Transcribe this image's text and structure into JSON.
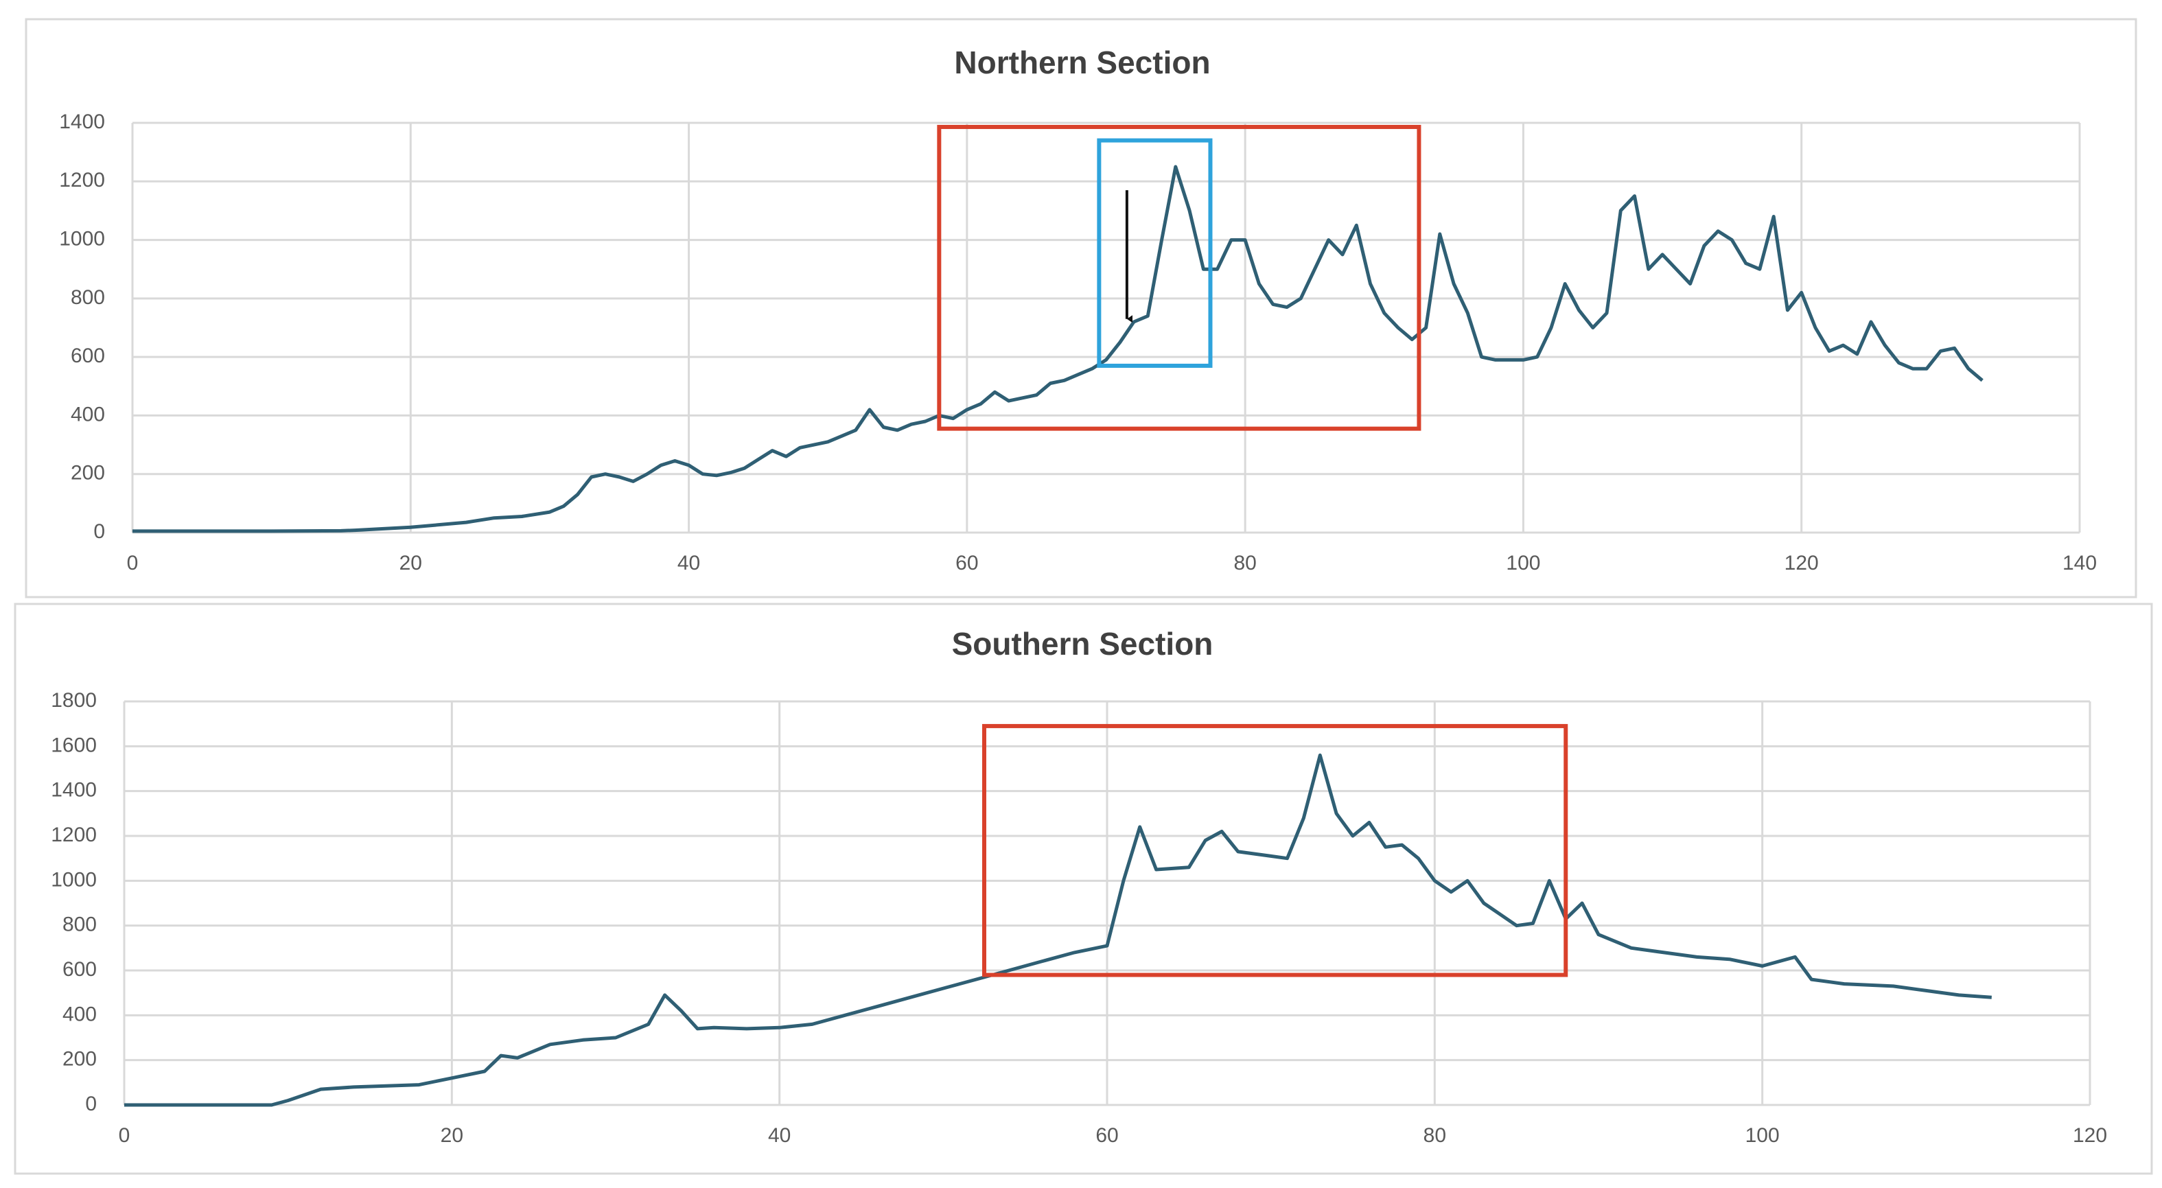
{
  "chart_data": [
    {
      "type": "line",
      "title": "Northern Section",
      "x": [
        0,
        5,
        10,
        15,
        16,
        20,
        24,
        26,
        28,
        30,
        31,
        32,
        33,
        34,
        35,
        36,
        37,
        38,
        39,
        40,
        41,
        42,
        43,
        44,
        45,
        46,
        47,
        48,
        49,
        50,
        51,
        52,
        53,
        54,
        55,
        56,
        57,
        58,
        59,
        60,
        61,
        62,
        63,
        64,
        65,
        66,
        67,
        68,
        69,
        70,
        71,
        72,
        73,
        74,
        75,
        76,
        77,
        78,
        79,
        80,
        81,
        82,
        83,
        84,
        85,
        86,
        87,
        88,
        89,
        90,
        91,
        92,
        93,
        94,
        95,
        96,
        97,
        98,
        99,
        100,
        101,
        102,
        103,
        104,
        105,
        106,
        107,
        108,
        109,
        110,
        111,
        112,
        113,
        114,
        115,
        116,
        117,
        118,
        119,
        120,
        121,
        122,
        123,
        124,
        125,
        126,
        127,
        128,
        129,
        130,
        131,
        132,
        133
      ],
      "series": [
        {
          "color": "#2f5f74",
          "values": [
            5,
            5,
            5,
            6,
            8,
            18,
            35,
            50,
            55,
            70,
            90,
            130,
            190,
            200,
            190,
            175,
            200,
            230,
            245,
            230,
            200,
            195,
            205,
            220,
            250,
            280,
            260,
            290,
            300,
            310,
            330,
            350,
            420,
            360,
            350,
            370,
            380,
            400,
            390,
            420,
            440,
            480,
            450,
            460,
            470,
            510,
            520,
            540,
            560,
            590,
            650,
            720,
            740,
            1000,
            1250,
            1100,
            900,
            900,
            1000,
            1000,
            850,
            780,
            770,
            800,
            900,
            1000,
            950,
            1050,
            850,
            750,
            700,
            660,
            700,
            1020,
            850,
            750,
            600,
            590,
            590,
            590,
            600,
            700,
            850,
            760,
            700,
            750,
            1100,
            1150,
            900,
            950,
            900,
            850,
            980,
            1030,
            1000,
            920,
            900,
            1080,
            760,
            820,
            700,
            620,
            640,
            610,
            720,
            640,
            580,
            560,
            560,
            620,
            630,
            560,
            520
          ]
        }
      ],
      "xlim": [
        0,
        140
      ],
      "xticks": [
        0,
        20,
        40,
        60,
        80,
        100,
        120,
        140
      ],
      "ylim": [
        0,
        1400
      ],
      "yticks": [
        0,
        200,
        400,
        600,
        800,
        1000,
        1200,
        1400
      ],
      "grid": true,
      "annotations": [
        {
          "shape": "rect",
          "color": "#d9412b",
          "x": [
            58,
            92.5
          ],
          "y": [
            355,
            1386
          ]
        },
        {
          "shape": "rect",
          "color": "#2ea3dc",
          "x": [
            69.5,
            77.5
          ],
          "y": [
            570,
            1340
          ]
        },
        {
          "shape": "arrow",
          "color": "#111111",
          "x": [
            71.5,
            71.5
          ],
          "y": [
            1170,
            730
          ]
        }
      ]
    },
    {
      "type": "line",
      "title": "Southern Section",
      "x": [
        0,
        5,
        9,
        10,
        12,
        14,
        16,
        18,
        20,
        22,
        23,
        24,
        26,
        28,
        30,
        32,
        33,
        34,
        35,
        36,
        38,
        40,
        42,
        44,
        46,
        48,
        50,
        52,
        54,
        56,
        58,
        60,
        61,
        62,
        63,
        65,
        66,
        67,
        68,
        70,
        71,
        72,
        73,
        74,
        75,
        76,
        77,
        78,
        79,
        80,
        81,
        82,
        83,
        84,
        85,
        86,
        87,
        88,
        89,
        90,
        92,
        94,
        96,
        98,
        100,
        102,
        103,
        105,
        108,
        110,
        112,
        114
      ],
      "series": [
        {
          "color": "#2f5f74",
          "values": [
            0,
            0,
            0,
            20,
            70,
            80,
            85,
            90,
            120,
            150,
            220,
            210,
            270,
            290,
            300,
            360,
            490,
            420,
            340,
            345,
            340,
            345,
            360,
            400,
            440,
            480,
            520,
            560,
            600,
            640,
            680,
            710,
            1000,
            1240,
            1050,
            1060,
            1180,
            1220,
            1130,
            1110,
            1100,
            1280,
            1560,
            1300,
            1200,
            1260,
            1150,
            1160,
            1100,
            1000,
            950,
            1000,
            900,
            850,
            800,
            810,
            1000,
            830,
            900,
            760,
            700,
            680,
            660,
            650,
            620,
            660,
            560,
            540,
            530,
            510,
            490,
            480
          ]
        }
      ],
      "xlim": [
        0,
        120
      ],
      "xticks": [
        0,
        20,
        40,
        60,
        80,
        100,
        120
      ],
      "ylim": [
        0,
        1800
      ],
      "yticks": [
        0,
        200,
        400,
        600,
        800,
        1000,
        1200,
        1400,
        1600,
        1800
      ],
      "grid": true,
      "annotations": [
        {
          "shape": "rect",
          "color": "#d9412b",
          "x": [
            52.5,
            88
          ],
          "y": [
            580,
            1690
          ]
        }
      ]
    }
  ]
}
